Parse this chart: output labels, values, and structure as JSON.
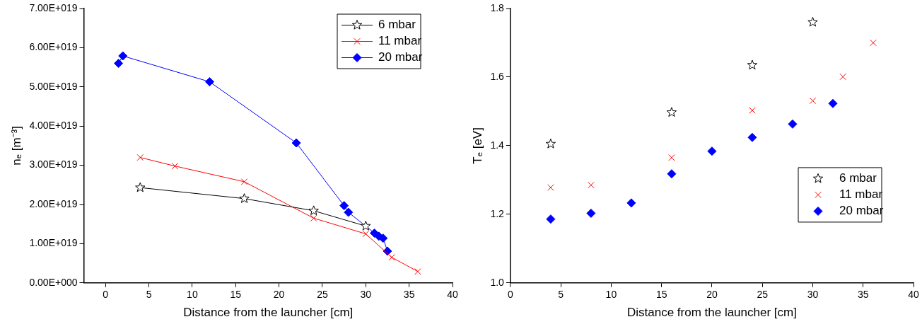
{
  "chart_data": [
    {
      "type": "line",
      "xlabel": "Distance from the launcher [cm]",
      "ylabel": "nₑ [m⁻³]",
      "xlim": [
        -2.5,
        40
      ],
      "xticks": [
        0,
        5,
        10,
        15,
        20,
        25,
        30,
        35,
        40
      ],
      "ylim": [
        0,
        7e+19
      ],
      "yticks": [
        {
          "value": 0,
          "label": "0.00E+000"
        },
        {
          "value": 1e+19,
          "label": "1.00E+019"
        },
        {
          "value": 2e+19,
          "label": "2.00E+019"
        },
        {
          "value": 3e+19,
          "label": "3.00E+019"
        },
        {
          "value": 4e+19,
          "label": "4.00E+019"
        },
        {
          "value": 5e+19,
          "label": "5.00E+019"
        },
        {
          "value": 6e+19,
          "label": "6.00E+019"
        },
        {
          "value": 7e+19,
          "label": "7.00E+019"
        }
      ],
      "grid": false,
      "legend": "top right",
      "series": [
        {
          "name": "6 mbar",
          "color": "#000000",
          "marker": "star",
          "x": [
            4,
            16,
            24,
            30
          ],
          "values": [
            2.43e+19,
            2.15e+19,
            1.84e+19,
            1.45e+19
          ]
        },
        {
          "name": "11 mbar",
          "color": "#ff0000",
          "marker": "cross",
          "x": [
            4,
            8,
            16,
            24,
            30,
            33,
            36
          ],
          "values": [
            3.2e+19,
            2.98e+19,
            2.58e+19,
            1.65e+19,
            1.25e+19,
            6.5e+18,
            2.9e+18
          ]
        },
        {
          "name": "20 mbar",
          "color": "#0000ff",
          "marker": "diamond",
          "x": [
            1.5,
            2,
            12,
            22,
            27.5,
            28,
            31,
            31.5,
            32,
            32.5
          ],
          "values": [
            5.6e+19,
            5.79e+19,
            5.13e+19,
            3.57e+19,
            1.97e+19,
            1.8e+19,
            1.27e+19,
            1.19e+19,
            1.14e+19,
            8.1e+18
          ]
        }
      ]
    },
    {
      "type": "scatter",
      "xlabel": "Distance from the launcher [cm]",
      "ylabel": "Tₑ [eV]",
      "xlim": [
        0,
        40
      ],
      "xticks": [
        0,
        5,
        10,
        15,
        20,
        25,
        30,
        35,
        40
      ],
      "ylim": [
        1.0,
        1.8
      ],
      "yticks": [
        {
          "value": 1.0,
          "label": "1.0"
        },
        {
          "value": 1.2,
          "label": "1.2"
        },
        {
          "value": 1.4,
          "label": "1.4"
        },
        {
          "value": 1.6,
          "label": "1.6"
        },
        {
          "value": 1.8,
          "label": "1.8"
        }
      ],
      "grid": false,
      "legend": "right",
      "series": [
        {
          "name": "6 mbar",
          "color": "#000000",
          "marker": "star",
          "x": [
            4,
            16,
            24,
            30
          ],
          "values": [
            1.405,
            1.497,
            1.635,
            1.76
          ]
        },
        {
          "name": "11 mbar",
          "color": "#ff0000",
          "marker": "cross",
          "x": [
            4,
            8,
            16,
            24,
            30,
            33,
            36
          ],
          "values": [
            1.278,
            1.285,
            1.365,
            1.503,
            1.531,
            1.601,
            1.7
          ]
        },
        {
          "name": "20 mbar",
          "color": "#0000ff",
          "marker": "diamond",
          "x": [
            4,
            8,
            12,
            16,
            20,
            24,
            28,
            32
          ],
          "values": [
            1.186,
            1.203,
            1.233,
            1.318,
            1.384,
            1.424,
            1.463,
            1.523
          ]
        }
      ]
    }
  ]
}
